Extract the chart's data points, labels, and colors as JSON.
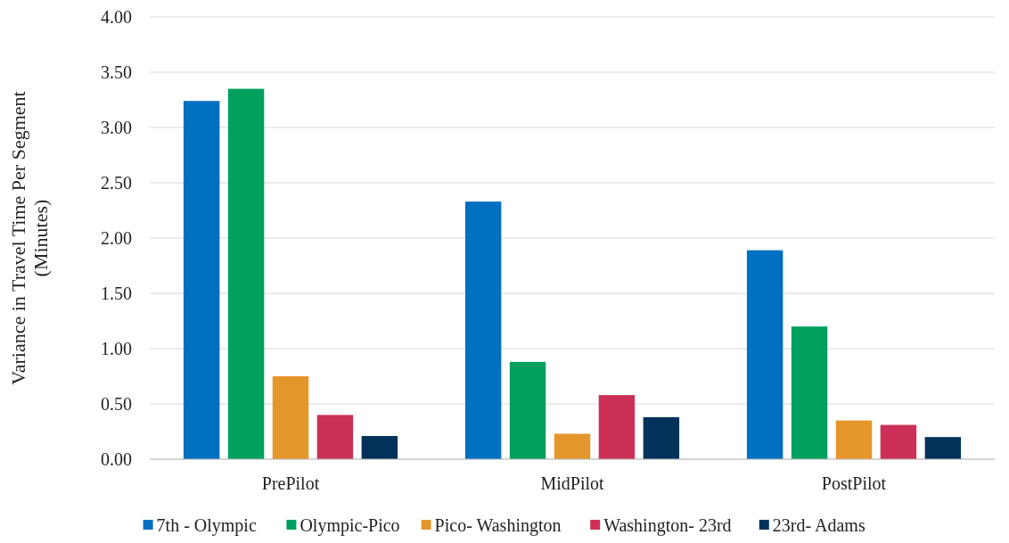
{
  "chart_data": {
    "type": "bar",
    "ylabel": "Variance in Travel Time Per Segment (Minutes)",
    "categories": [
      "PrePilot",
      "MidPilot",
      "PostPilot"
    ],
    "series": [
      {
        "name": "7th - Olympic",
        "color": "#0070c0",
        "values": [
          3.24,
          2.33,
          1.89
        ]
      },
      {
        "name": "Olympic-Pico",
        "color": "#00a05e",
        "values": [
          3.35,
          0.88,
          1.2
        ]
      },
      {
        "name": "Pico- Washington",
        "color": "#e5962a",
        "values": [
          0.75,
          0.23,
          0.35
        ]
      },
      {
        "name": "Washington- 23rd",
        "color": "#cc3056",
        "values": [
          0.4,
          0.58,
          0.31
        ]
      },
      {
        "name": "23rd- Adams",
        "color": "#00325a",
        "values": [
          0.21,
          0.38,
          0.2
        ]
      }
    ],
    "ylim": [
      0,
      4
    ],
    "yticks": [
      {
        "value": 0,
        "label": "0.00"
      },
      {
        "value": 0.5,
        "label": "0.50"
      },
      {
        "value": 1,
        "label": "1.00"
      },
      {
        "value": 1.5,
        "label": "1.50"
      },
      {
        "value": 2,
        "label": "2.00"
      },
      {
        "value": 2.5,
        "label": "2.50"
      },
      {
        "value": 3,
        "label": "3.00"
      },
      {
        "value": 3.5,
        "label": "3.50"
      },
      {
        "value": 4,
        "label": "4.00"
      }
    ],
    "grid": "y",
    "legend": "bottom"
  }
}
